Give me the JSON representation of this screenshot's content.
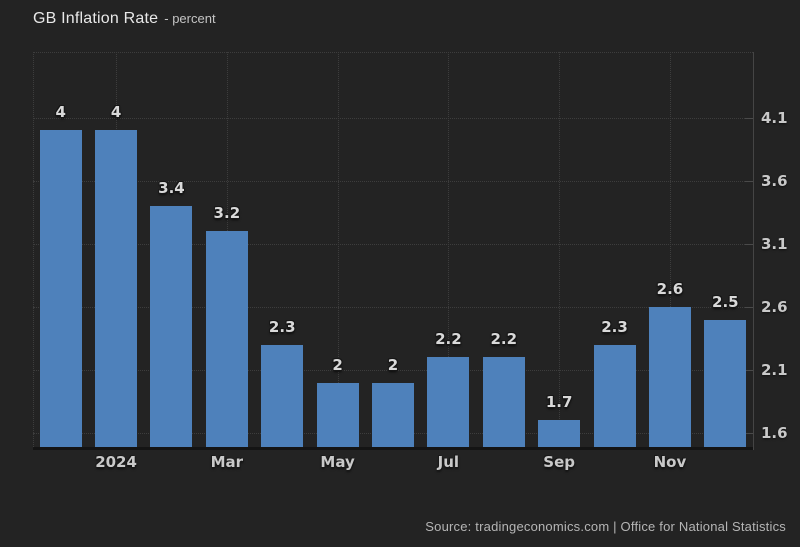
{
  "page": {
    "title": "GB Inflation Rate",
    "subtitle": "- percent",
    "source": "Source: tradingeconomics.com | Office for National Statistics"
  },
  "colors": {
    "background": "#232323",
    "bar": "#4e81bb",
    "grid": "#3d3d3d",
    "axis_line": "#454545",
    "baseline": "#141414",
    "value_label": "#d9d9d9",
    "tick_label": "#c9c9c9",
    "title_text": "#e8e8e8",
    "source_text": "#b5b5b5"
  },
  "chart_data": {
    "type": "bar",
    "title": "GB Inflation Rate",
    "unit": "percent",
    "values": [
      4,
      4,
      3.4,
      3.2,
      2.3,
      2,
      2,
      2.2,
      2.2,
      1.7,
      2.3,
      2.6,
      2.5
    ],
    "bar_labels": [
      "4",
      "4",
      "3.4",
      "3.2",
      "2.3",
      "2",
      "2",
      "2.2",
      "2.2",
      "1.7",
      "2.3",
      "2.6",
      "2.5"
    ],
    "x_tick_labels": [
      "2024",
      "Mar",
      "May",
      "Jul",
      "Sep",
      "Nov"
    ],
    "x_tick_bar_indices": [
      1,
      3,
      5,
      7,
      9,
      11
    ],
    "y_ticks": [
      4.1,
      3.6,
      3.1,
      2.6,
      2.1,
      1.6
    ],
    "ylim": [
      1.49,
      4.62
    ],
    "y_axis_side": "right",
    "grid": "dotted",
    "legend": "none"
  }
}
